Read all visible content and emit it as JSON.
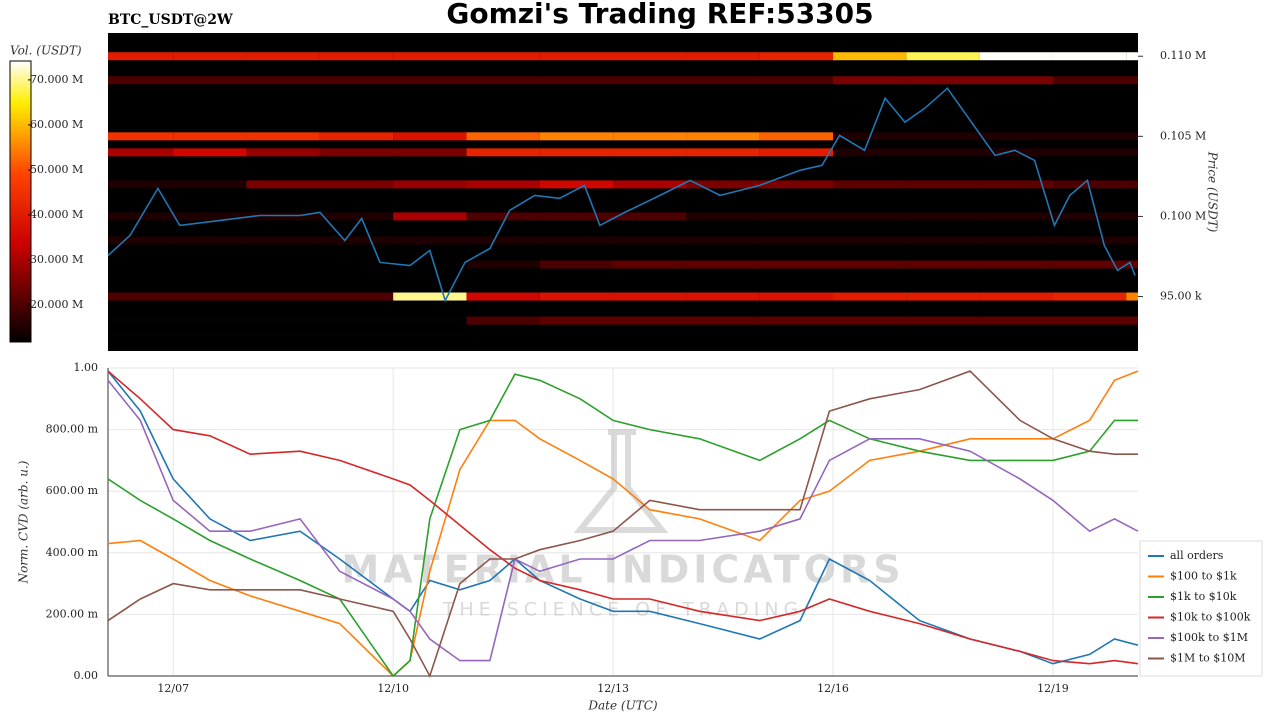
{
  "chart_data": [
    {
      "type": "heatmap",
      "title": "Gomzi's Trading REF:53305",
      "subtitle": "BTC_USDT@2W",
      "colorbar_label": "Vol. (USDT)",
      "y_label": "Price (USDT)",
      "xlim": [
        6.11,
        20.16
      ],
      "ylim": [
        91600,
        111450
      ],
      "yticks": [
        {
          "value": 95000,
          "label": "95.00 k"
        },
        {
          "value": 100000,
          "label": "0.100 M"
        },
        {
          "value": 105000,
          "label": "0.105 M"
        },
        {
          "value": 110000,
          "label": "0.110 M"
        }
      ],
      "clim": [
        11800000,
        74200000
      ],
      "cticks": [
        {
          "value": 20000000,
          "label": "20.000 M"
        },
        {
          "value": 30000000,
          "label": "30.000 M"
        },
        {
          "value": 40000000,
          "label": "40.000 M"
        },
        {
          "value": 50000000,
          "label": "50.000 M"
        },
        {
          "value": 60000000,
          "label": "60.000 M"
        },
        {
          "value": 70000000,
          "label": "70.000 M"
        }
      ],
      "xbins": [
        6.11,
        7,
        8,
        9,
        10,
        11,
        12,
        13,
        14,
        15,
        16,
        17,
        18,
        19,
        20,
        20.16
      ],
      "levels": [
        110000,
        108500,
        105000,
        104000,
        102000,
        100000,
        98500,
        97000,
        95000,
        93500
      ],
      "values": [
        [
          40000000,
          40000000,
          40000000,
          40000000,
          40000000,
          40000000,
          40000000,
          40000000,
          40000000,
          42000000,
          60000000,
          68000000,
          74000000,
          74000000,
          74000000
        ],
        [
          20000000,
          20000000,
          20000000,
          20000000,
          20000000,
          20000000,
          20000000,
          20000000,
          20000000,
          20000000,
          25000000,
          25000000,
          25000000,
          20000000,
          20000000
        ],
        [
          45000000,
          45000000,
          45000000,
          42000000,
          38000000,
          52000000,
          55000000,
          55000000,
          55000000,
          52000000,
          15000000,
          15000000,
          15000000,
          15000000,
          15000000
        ],
        [
          30000000,
          35000000,
          28000000,
          25000000,
          25000000,
          42000000,
          42000000,
          42000000,
          42000000,
          40000000,
          15000000,
          15000000,
          15000000,
          15000000,
          15000000
        ],
        [
          15000000,
          15000000,
          25000000,
          25000000,
          28000000,
          30000000,
          35000000,
          30000000,
          25000000,
          25000000,
          22000000,
          22000000,
          22000000,
          20000000,
          20000000
        ],
        [
          15000000,
          15000000,
          15000000,
          15000000,
          30000000,
          20000000,
          20000000,
          20000000,
          15000000,
          15000000,
          15000000,
          15000000,
          15000000,
          15000000,
          15000000
        ],
        [
          15000000,
          15000000,
          15000000,
          15000000,
          15000000,
          15000000,
          15000000,
          15000000,
          15000000,
          15000000,
          15000000,
          15000000,
          15000000,
          15000000,
          15000000
        ],
        [
          10000000,
          10000000,
          10000000,
          10000000,
          10000000,
          15000000,
          20000000,
          22000000,
          22000000,
          22000000,
          22000000,
          22000000,
          22000000,
          22000000,
          22000000
        ],
        [
          20000000,
          20000000,
          20000000,
          20000000,
          70000000,
          35000000,
          38000000,
          38000000,
          38000000,
          38000000,
          40000000,
          40000000,
          40000000,
          42000000,
          55000000
        ],
        [
          12000000,
          12000000,
          12000000,
          12000000,
          12000000,
          20000000,
          22000000,
          22000000,
          22000000,
          22000000,
          22000000,
          22000000,
          22000000,
          22000000,
          22000000
        ]
      ],
      "line": {
        "color": "#1f77b4",
        "x": [
          6.11,
          6.41,
          6.79,
          7.09,
          7.64,
          8.18,
          8.73,
          9.0,
          9.34,
          9.57,
          9.82,
          10.23,
          10.5,
          10.71,
          10.98,
          11.32,
          11.59,
          11.93,
          12.27,
          12.61,
          12.82,
          13.16,
          13.64,
          14.05,
          14.46,
          15.0,
          15.55,
          15.85,
          16.09,
          16.43,
          16.71,
          16.98,
          17.25,
          17.56,
          17.87,
          18.21,
          18.48,
          18.75,
          19.02,
          19.23,
          19.47,
          19.7,
          19.88,
          20.05,
          20.12
        ],
        "values": [
          97560,
          98810,
          101750,
          99440,
          99750,
          100060,
          100060,
          100250,
          98500,
          99870,
          97130,
          96940,
          97880,
          94750,
          97130,
          98000,
          100380,
          101310,
          101130,
          101940,
          99440,
          100250,
          101310,
          102250,
          101310,
          101940,
          102880,
          103190,
          105060,
          104130,
          107380,
          105880,
          106750,
          108000,
          106000,
          103810,
          104130,
          103500,
          99440,
          101310,
          102250,
          98190,
          96630,
          97130,
          96310
        ]
      }
    },
    {
      "type": "line",
      "xlabel": "Date (UTC)",
      "ylabel": "Norm. CVD (arb. u.)",
      "grid": true,
      "legend": "lower right",
      "watermark": [
        "MATERIAL INDICATORS",
        "THE SCIENCE OF TRADING"
      ],
      "xlim": [
        6.11,
        20.16
      ],
      "ylim": [
        0,
        1
      ],
      "xticks": [
        {
          "value": 7,
          "label": "12/07"
        },
        {
          "value": 10,
          "label": "12/10"
        },
        {
          "value": 13,
          "label": "12/13"
        },
        {
          "value": 16,
          "label": "12/16"
        },
        {
          "value": 19,
          "label": "12/19"
        }
      ],
      "yticks": [
        {
          "value": 0,
          "label": "0.00"
        },
        {
          "value": 0.2,
          "label": "200.00 m"
        },
        {
          "value": 0.4,
          "label": "400.00 m"
        },
        {
          "value": 0.6,
          "label": "600.00 m"
        },
        {
          "value": 0.8,
          "label": "800.00 m"
        },
        {
          "value": 1,
          "label": "1.00"
        }
      ],
      "x": [
        6.11,
        6.55,
        7.0,
        7.5,
        8.05,
        8.73,
        9.27,
        10.0,
        10.23,
        10.5,
        10.91,
        11.32,
        11.66,
        12.0,
        12.55,
        13.0,
        13.5,
        14.18,
        15.0,
        15.55,
        15.95,
        16.5,
        17.18,
        17.87,
        18.55,
        19.0,
        19.5,
        19.84,
        20.16
      ],
      "series": [
        {
          "name": "all orders",
          "color": "#1f77b4",
          "values": [
            0.99,
            0.86,
            0.64,
            0.51,
            0.44,
            0.47,
            0.38,
            0.25,
            0.21,
            0.31,
            0.28,
            0.31,
            0.38,
            0.31,
            0.25,
            0.21,
            0.21,
            0.17,
            0.12,
            0.18,
            0.38,
            0.31,
            0.18,
            0.12,
            0.08,
            0.04,
            0.07,
            0.12,
            0.1
          ]
        },
        {
          "name": "$100 to $1k",
          "color": "#ff7f0e",
          "values": [
            0.43,
            0.44,
            0.38,
            0.31,
            0.26,
            0.21,
            0.17,
            0.0,
            0.05,
            0.34,
            0.67,
            0.83,
            0.83,
            0.77,
            0.7,
            0.64,
            0.54,
            0.51,
            0.44,
            0.57,
            0.6,
            0.7,
            0.73,
            0.77,
            0.77,
            0.77,
            0.83,
            0.96,
            0.99
          ]
        },
        {
          "name": "$1k to $10k",
          "color": "#2ca02c",
          "values": [
            0.64,
            0.57,
            0.51,
            0.44,
            0.38,
            0.31,
            0.25,
            0.0,
            0.05,
            0.51,
            0.8,
            0.83,
            0.98,
            0.96,
            0.9,
            0.83,
            0.8,
            0.77,
            0.7,
            0.77,
            0.83,
            0.77,
            0.73,
            0.7,
            0.7,
            0.7,
            0.73,
            0.83,
            0.83
          ]
        },
        {
          "name": "$10k to $100k",
          "color": "#d62728",
          "values": [
            0.99,
            0.9,
            0.8,
            0.78,
            0.72,
            0.73,
            0.7,
            0.64,
            0.62,
            0.57,
            0.49,
            0.41,
            0.35,
            0.31,
            0.28,
            0.25,
            0.25,
            0.21,
            0.18,
            0.21,
            0.25,
            0.21,
            0.17,
            0.12,
            0.08,
            0.05,
            0.04,
            0.05,
            0.04
          ]
        },
        {
          "name": "$100k to $1M",
          "color": "#9467bd",
          "values": [
            0.96,
            0.83,
            0.57,
            0.47,
            0.47,
            0.51,
            0.34,
            0.25,
            0.21,
            0.12,
            0.05,
            0.05,
            0.38,
            0.34,
            0.38,
            0.38,
            0.44,
            0.44,
            0.47,
            0.51,
            0.7,
            0.77,
            0.77,
            0.73,
            0.64,
            0.57,
            0.47,
            0.51,
            0.47
          ]
        },
        {
          "name": "$1M to $10M",
          "color": "#8c564b",
          "values": [
            0.18,
            0.25,
            0.3,
            0.28,
            0.28,
            0.28,
            0.25,
            0.21,
            0.12,
            0.0,
            0.3,
            0.38,
            0.38,
            0.41,
            0.44,
            0.47,
            0.57,
            0.54,
            0.54,
            0.54,
            0.86,
            0.9,
            0.93,
            0.99,
            0.83,
            0.77,
            0.73,
            0.72,
            0.72
          ]
        }
      ]
    }
  ]
}
